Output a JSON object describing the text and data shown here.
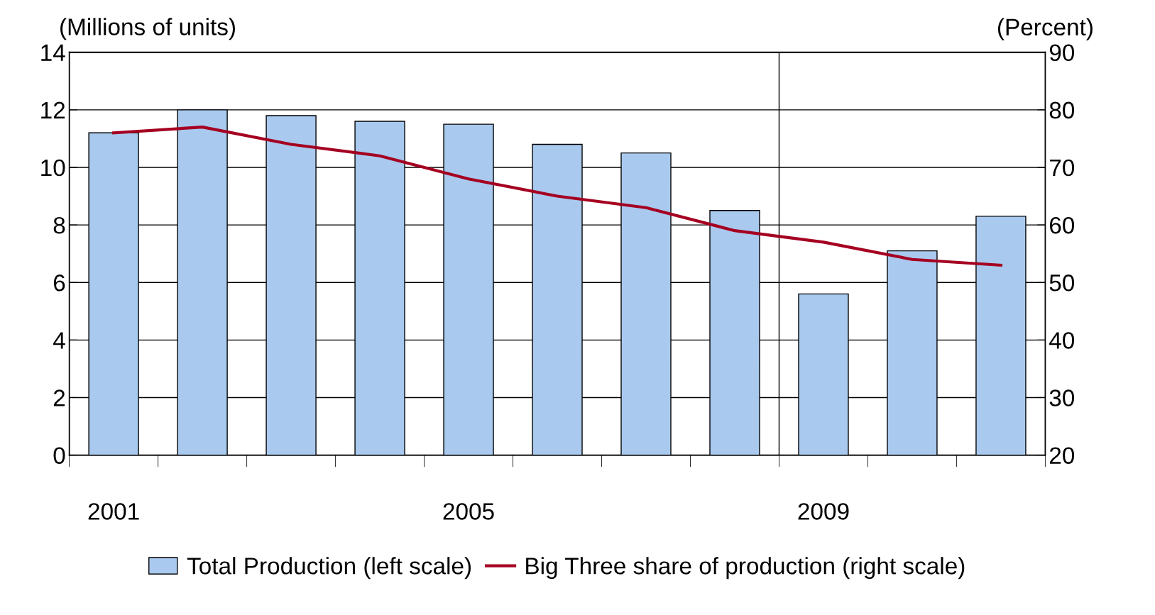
{
  "chart_data": {
    "type": "bar",
    "x": [
      2001,
      2002,
      2003,
      2004,
      2005,
      2006,
      2007,
      2008,
      2009,
      2010,
      2011
    ],
    "xlim": [
      2000.5,
      2011.5
    ],
    "xticks": [
      2001,
      2005,
      2009
    ],
    "series": [
      {
        "name": "Total Production (left scale)",
        "color": "#a9c9ee",
        "values": [
          11.2,
          12.0,
          11.8,
          11.6,
          11.5,
          10.8,
          10.5,
          8.5,
          5.6,
          7.1,
          8.3
        ]
      },
      {
        "name": "Big Three share of production (right scale)",
        "type": "line",
        "axis": "y2",
        "color": "#a50021",
        "values": [
          76,
          77,
          74,
          72,
          68,
          65,
          63,
          59,
          57,
          54,
          53
        ]
      }
    ],
    "ylabel": "(Millions of units)",
    "y2label": "(Percent)",
    "ylim": [
      0,
      14
    ],
    "yticks": [
      0,
      2,
      4,
      6,
      8,
      10,
      12,
      14
    ],
    "y2lim": [
      20,
      90
    ],
    "y2ticks": [
      20,
      30,
      40,
      50,
      60,
      70,
      80,
      90
    ],
    "ref_lines": [
      {
        "axis": "x",
        "value": 2008.5,
        "color": "#000000"
      }
    ],
    "grid": "y",
    "legend": "bottom",
    "marker": "none",
    "line_style": "solid"
  }
}
